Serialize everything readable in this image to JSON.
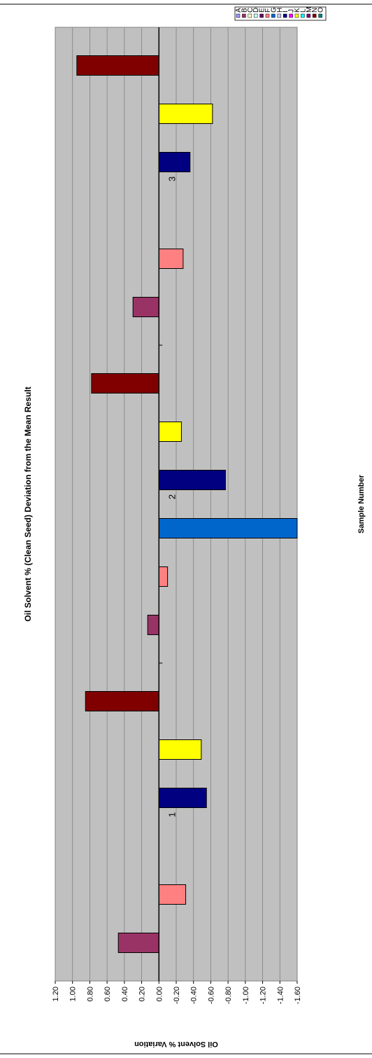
{
  "chart_data": {
    "type": "bar",
    "orientation": "rotated-90",
    "title": "Oil Solvent % (Clean Seed) Deviation from the Mean Result",
    "xlabel": "Sample Number",
    "ylabel": "Oil Solvent % Variation",
    "ylim": [
      -1.6,
      1.2
    ],
    "yticks": [
      "1.20",
      "1.00",
      "0.80",
      "0.60",
      "0.40",
      "0.20",
      "0.00",
      "-0.20",
      "-0.40",
      "-0.60",
      "-0.80",
      "-1.00",
      "-1.20",
      "-1.40",
      "-1.60"
    ],
    "grid": true,
    "legend_position": "top-right",
    "categories": [
      "1",
      "2",
      "3"
    ],
    "series": [
      {
        "name": "A",
        "color": "#9999FF",
        "values": [
          null,
          null,
          null
        ]
      },
      {
        "name": "B",
        "color": "#993366",
        "values": [
          0.47,
          0.13,
          0.3
        ]
      },
      {
        "name": "C",
        "color": "#FFFFCC",
        "values": [
          null,
          null,
          null
        ]
      },
      {
        "name": "D",
        "color": "#CCFFFF",
        "values": [
          null,
          null,
          null
        ]
      },
      {
        "name": "E",
        "color": "#660066",
        "values": [
          null,
          null,
          null
        ]
      },
      {
        "name": "F",
        "color": "#FF8080",
        "values": [
          -0.31,
          -0.1,
          -0.28
        ]
      },
      {
        "name": "G",
        "color": "#0066CC",
        "values": [
          null,
          -1.6,
          null
        ]
      },
      {
        "name": "H",
        "color": "#CCCCFF",
        "values": [
          null,
          null,
          null
        ]
      },
      {
        "name": "I",
        "color": "#000080",
        "values": [
          -0.55,
          -0.77,
          -0.36
        ]
      },
      {
        "name": "J",
        "color": "#FF00FF",
        "values": [
          null,
          null,
          null
        ]
      },
      {
        "name": "K",
        "color": "#FFFF00",
        "values": [
          -0.49,
          -0.26,
          -0.62
        ]
      },
      {
        "name": "L",
        "color": "#00FFFF",
        "values": [
          null,
          null,
          null
        ]
      },
      {
        "name": "M",
        "color": "#800080",
        "values": [
          null,
          null,
          null
        ]
      },
      {
        "name": "N",
        "color": "#800000",
        "values": [
          0.85,
          0.78,
          0.95
        ]
      },
      {
        "name": "O",
        "color": "#008080",
        "values": [
          null,
          null,
          null
        ]
      }
    ]
  }
}
